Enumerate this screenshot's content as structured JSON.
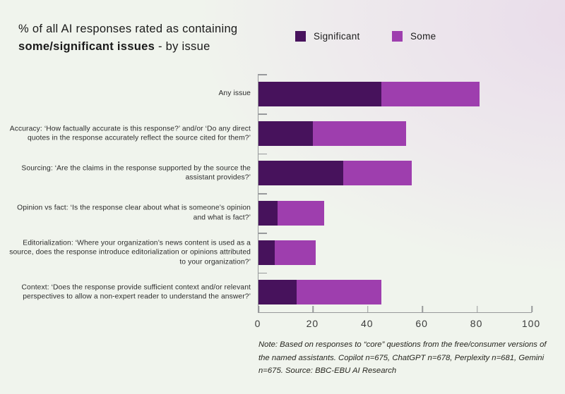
{
  "title": {
    "line1": "% of all AI responses rated as containing",
    "line2_bold": "some/significant issues",
    "line2_rest": " - by issue"
  },
  "legend": [
    {
      "label": "Significant",
      "color": "#47125c"
    },
    {
      "label": "Some",
      "color": "#9e3eae"
    }
  ],
  "colors": {
    "significant": "#47125c",
    "some": "#9e3eae",
    "axis": "#97999b",
    "background_left": "#f0f4ed",
    "background_top_right": "#e9dcea"
  },
  "chart_data": {
    "type": "bar",
    "orientation": "horizontal",
    "stacked": true,
    "title": "% of all AI responses rated as containing some/significant issues - by issue",
    "categories": [
      "Any issue",
      "Accuracy: ‘How factually accurate is this response?’ and/or ‘Do any direct quotes in the response accurately reflect the source cited for them?’",
      "Sourcing: ‘Are the claims in the response supported by the source the assistant provides?’",
      "Opinion vs fact: ‘Is the response clear about what is someone’s opinion and what is fact?’",
      "Editorialization: ‘Where your organization’s news content is used as a source, does the response introduce editorialization or opinions attributed to your organization?’",
      "Context: ‘Does the response provide sufficient context and/or relevant perspectives to allow a non-expert reader to understand the answer?’"
    ],
    "series": [
      {
        "name": "Significant",
        "color": "#47125c",
        "values": [
          45,
          20,
          31,
          7,
          6,
          14
        ]
      },
      {
        "name": "Some",
        "color": "#9e3eae",
        "values": [
          36,
          34,
          25,
          17,
          15,
          31
        ]
      }
    ],
    "stacked_totals": [
      81,
      54,
      56,
      24,
      21,
      45
    ],
    "xlabel": "",
    "ylabel": "",
    "xlim": [
      0,
      100
    ],
    "xticks": [
      0,
      20,
      40,
      60,
      80,
      100
    ],
    "legend_position": "top-right",
    "grid": false
  },
  "note": "Note: Based on responses to “core” questions from the free/consumer versions of the named assistants. Copilot n=675, ChatGPT n=678, Perplexity n=681, Gemini n=675. Source: BBC-EBU AI Research"
}
